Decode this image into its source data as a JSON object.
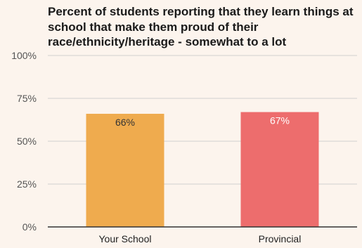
{
  "chart_data": {
    "type": "bar",
    "title": "Percent of students reporting that they learn things at school that make them proud of their race/ethnicity/heritage - somewhat to a lot",
    "categories": [
      "Your School",
      "Provincial"
    ],
    "values": [
      66,
      67
    ],
    "data_labels": [
      "66%",
      "67%"
    ],
    "bar_colors": [
      "#efab4e",
      "#ed6d6d"
    ],
    "label_colors": [
      "#333333",
      "#ffffff"
    ],
    "ylim": [
      0,
      100
    ],
    "yticks": [
      0,
      25,
      50,
      75,
      100
    ],
    "ytick_labels": [
      "0%",
      "25%",
      "50%",
      "75%",
      "100%"
    ],
    "grid": true,
    "legend": "none"
  }
}
